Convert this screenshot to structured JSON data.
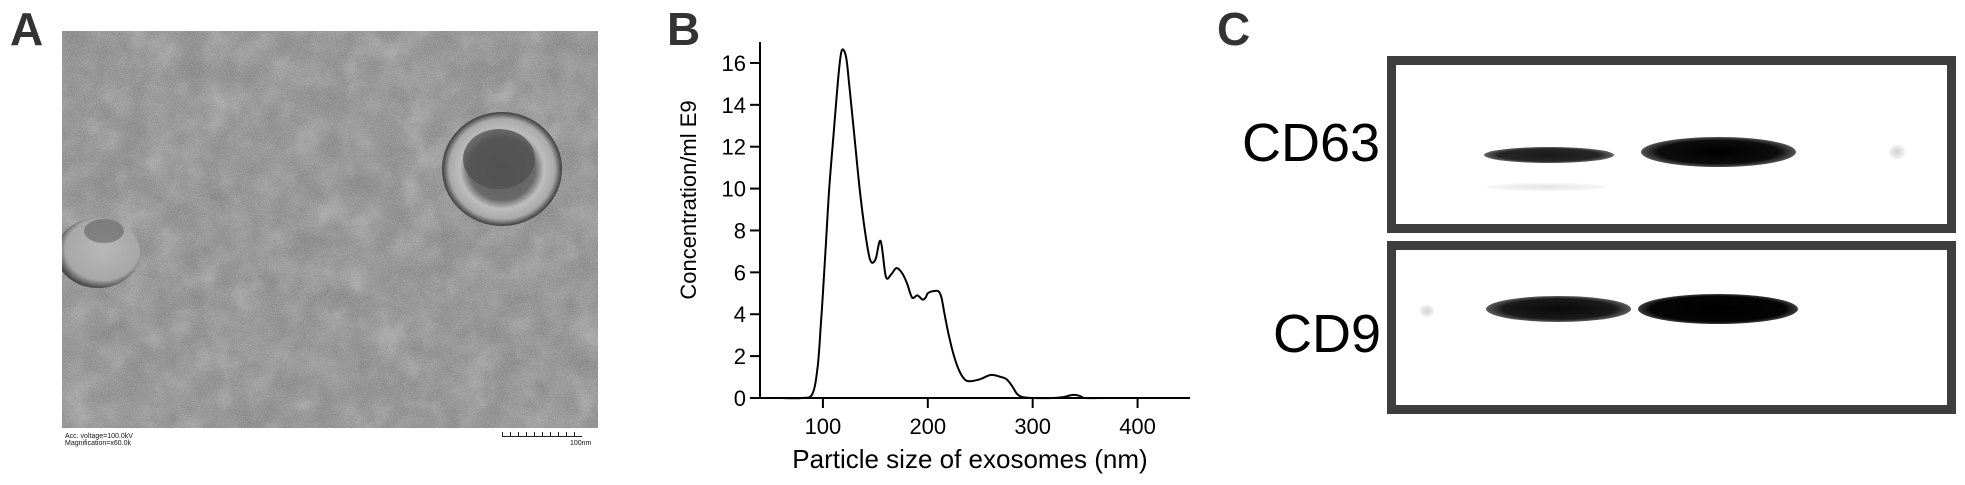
{
  "panels": {
    "a": {
      "letter": "A",
      "caption_line1": "Acc. voltage=100.0kV",
      "caption_line2": "Magnification=x60.0k",
      "scale_label": "100nm"
    },
    "b": {
      "letter": "B"
    },
    "c": {
      "letter": "C"
    }
  },
  "chart_data": {
    "type": "line",
    "title": "",
    "xlabel": "Particle size of exosomes (nm)",
    "ylabel": "Concentration/ml E9",
    "xlim": [
      40,
      450
    ],
    "ylim": [
      0,
      17
    ],
    "xticks": [
      100,
      200,
      300,
      400
    ],
    "yticks": [
      0,
      2,
      4,
      6,
      8,
      10,
      12,
      14,
      16
    ],
    "grid": false,
    "legend": "none",
    "series": [
      {
        "color": "#000000",
        "x": [
          60,
          80,
          90,
          95,
          98,
          100,
          103,
          106,
          110,
          115,
          118,
          122,
          125,
          130,
          135,
          140,
          145,
          150,
          155,
          160,
          165,
          170,
          175,
          180,
          185,
          190,
          195,
          198,
          200,
          205,
          210,
          213,
          216,
          220,
          225,
          230,
          235,
          240,
          250,
          260,
          270,
          275,
          280,
          285,
          290,
          300,
          320,
          330,
          335,
          340,
          345,
          350,
          370,
          440
        ],
        "y": [
          0,
          0,
          0.2,
          1.5,
          3.5,
          5,
          7.5,
          10,
          12.5,
          15.5,
          16.6,
          16.3,
          15,
          12.5,
          10,
          8,
          6.6,
          6.6,
          7.5,
          5.8,
          5.9,
          6.2,
          6,
          5.5,
          4.8,
          4.9,
          4.7,
          4.8,
          5,
          5.1,
          5.1,
          4.8,
          4,
          3,
          2,
          1.3,
          0.9,
          0.8,
          0.9,
          1.1,
          1.0,
          0.9,
          0.6,
          0.2,
          0.05,
          0,
          0,
          0.05,
          0.12,
          0.15,
          0.1,
          0,
          0,
          0
        ]
      }
    ]
  },
  "blot": {
    "rows": [
      {
        "label": "CD63"
      },
      {
        "label": "CD9"
      }
    ]
  }
}
